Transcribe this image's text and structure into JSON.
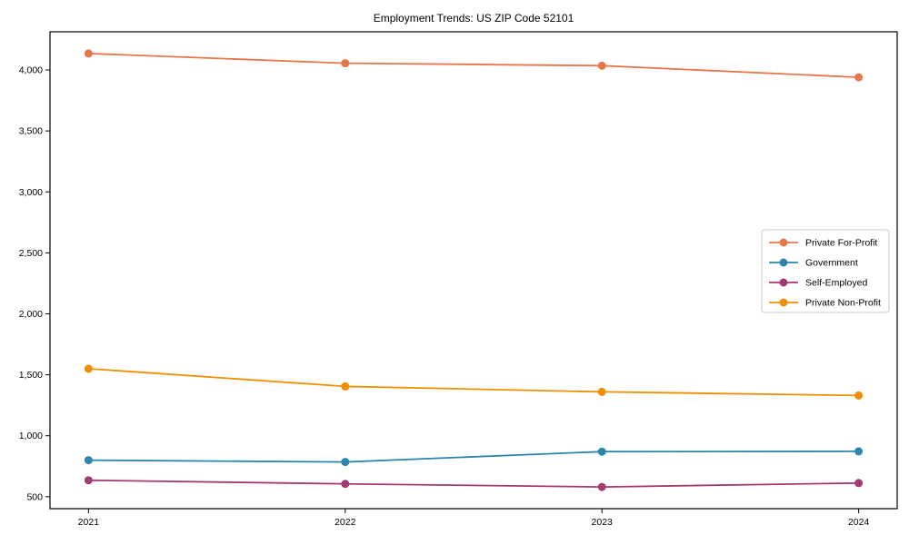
{
  "chart_data": {
    "type": "line",
    "title": "Employment Trends: US ZIP Code 52101",
    "x": [
      2021,
      2022,
      2023,
      2024
    ],
    "x_tick_labels": [
      "2021",
      "2022",
      "2023",
      "2024"
    ],
    "series": [
      {
        "name": "Private For-Profit",
        "color": "#E8764B",
        "values": [
          4135,
          4055,
          4035,
          3940
        ]
      },
      {
        "name": "Government",
        "color": "#2E86AB",
        "values": [
          800,
          785,
          870,
          872
        ]
      },
      {
        "name": "Self-Employed",
        "color": "#A23B72",
        "values": [
          635,
          605,
          580,
          612
        ]
      },
      {
        "name": "Private Non-Profit",
        "color": "#F18F01",
        "values": [
          1550,
          1405,
          1360,
          1330
        ]
      }
    ],
    "xlabel": "",
    "ylabel": "",
    "yticks": [
      500,
      1000,
      1500,
      2000,
      2500,
      3000,
      3500,
      4000
    ],
    "ylim": [
      402,
      4313
    ],
    "xlim": [
      2020.85,
      2024.15
    ],
    "grid": false,
    "legend_position": "center-right",
    "marker": "circle",
    "background_color": "#ffffff",
    "axis_color": "#000000",
    "legend_border_color": "#cccccc"
  }
}
